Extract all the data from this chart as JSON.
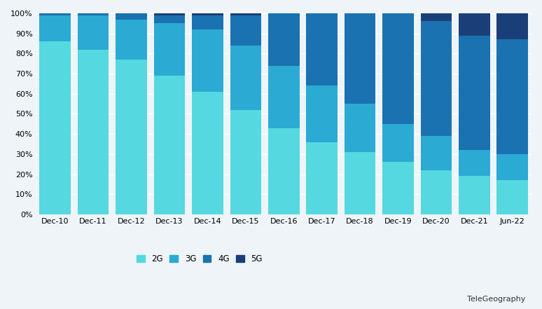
{
  "categories": [
    "Dec-10",
    "Dec-11",
    "Dec-12",
    "Dec-13",
    "Dec-14",
    "Dec-15",
    "Dec-16",
    "Dec-17",
    "Dec-18",
    "Dec-19",
    "Dec-20",
    "Dec-21",
    "Jun-22"
  ],
  "2G": [
    86,
    82,
    77,
    69,
    61,
    52,
    43,
    36,
    31,
    26,
    22,
    19,
    17
  ],
  "3G": [
    13,
    17,
    20,
    26,
    31,
    32,
    31,
    28,
    24,
    19,
    17,
    13,
    13
  ],
  "4G": [
    1,
    1,
    3,
    4,
    7,
    15,
    26,
    36,
    45,
    55,
    57,
    57,
    57
  ],
  "5G": [
    0,
    0,
    0,
    1,
    1,
    1,
    0,
    0,
    0,
    0,
    4,
    11,
    13
  ],
  "colors": {
    "2G": "#55D8E0",
    "3G": "#2BAAD4",
    "4G": "#1A72B0",
    "5G": "#1A3F78"
  },
  "background_color": "#EEF4F8",
  "grid_color": "#FFFFFF",
  "bar_width": 0.82
}
